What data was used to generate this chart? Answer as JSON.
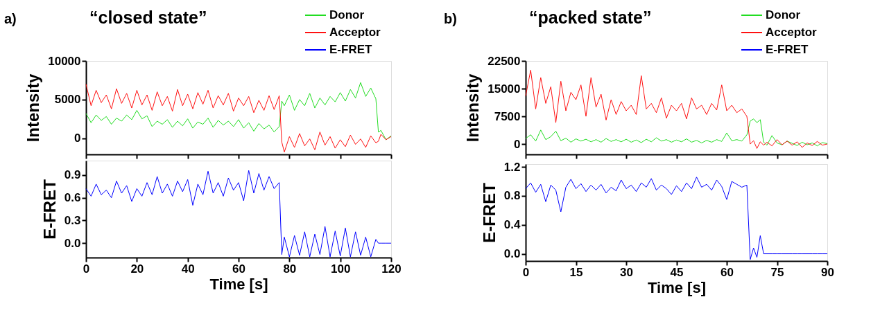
{
  "chart_data": [
    {
      "type": "line",
      "title": "“closed state”",
      "annotations": [
        "a)"
      ],
      "ylabel": "Intensity",
      "legend": "top right",
      "tick_labels": "y",
      "xlim": [
        0,
        120
      ],
      "xticks": [
        0,
        20,
        40,
        60,
        80,
        100,
        120
      ],
      "ylim": [
        -2100,
        10000
      ],
      "yticks": [
        0,
        5000,
        10000
      ],
      "series": [
        {
          "name": "Donor",
          "color": "#22dd22",
          "x": [
            0,
            2,
            4,
            6,
            8,
            10,
            12,
            14,
            16,
            18,
            20,
            22,
            24,
            26,
            28,
            30,
            32,
            34,
            36,
            38,
            40,
            42,
            44,
            46,
            48,
            50,
            52,
            54,
            56,
            58,
            60,
            62,
            64,
            66,
            68,
            70,
            72,
            74,
            76,
            77,
            78,
            80,
            82,
            84,
            86,
            88,
            90,
            92,
            94,
            96,
            98,
            100,
            102,
            104,
            106,
            108,
            110,
            112,
            114,
            115,
            116,
            118,
            120
          ],
          "values": [
            3200,
            2000,
            3000,
            2300,
            2800,
            1800,
            2600,
            2200,
            3000,
            2400,
            3600,
            2500,
            2900,
            1500,
            2200,
            1800,
            2400,
            1400,
            2200,
            1600,
            2500,
            1300,
            2100,
            1800,
            2600,
            1400,
            2300,
            1700,
            2200,
            1500,
            2400,
            1300,
            2000,
            900,
            1900,
            1200,
            1700,
            800,
            1500,
            4800,
            4200,
            5600,
            3600,
            5000,
            4200,
            5800,
            3900,
            5200,
            4300,
            5400,
            4700,
            5900,
            4800,
            6300,
            5200,
            7200,
            5400,
            6500,
            5100,
            800,
            1000,
            -200,
            300
          ]
        },
        {
          "name": "Acceptor",
          "color": "#ff1111",
          "x": [
            0,
            2,
            4,
            6,
            8,
            10,
            12,
            14,
            16,
            18,
            20,
            22,
            24,
            26,
            28,
            30,
            32,
            34,
            36,
            38,
            40,
            42,
            44,
            46,
            48,
            50,
            52,
            54,
            56,
            58,
            60,
            62,
            64,
            66,
            68,
            70,
            72,
            74,
            76,
            77,
            78,
            80,
            82,
            84,
            86,
            88,
            90,
            92,
            94,
            96,
            98,
            100,
            102,
            104,
            106,
            108,
            110,
            112,
            114,
            115,
            116,
            118,
            120
          ],
          "values": [
            7000,
            4200,
            6200,
            4600,
            5600,
            3800,
            6400,
            4500,
            5800,
            3900,
            6200,
            4300,
            5600,
            3600,
            6000,
            4200,
            5400,
            3500,
            6300,
            4200,
            5700,
            3800,
            5900,
            4400,
            6200,
            3900,
            5500,
            4300,
            5800,
            3500,
            5200,
            4200,
            5400,
            3300,
            4900,
            3600,
            5500,
            3700,
            5500,
            -500,
            -1800,
            200,
            -1200,
            600,
            -1000,
            -100,
            -1500,
            800,
            -900,
            200,
            -1300,
            -200,
            -1100,
            400,
            -800,
            -100,
            -1200,
            300,
            -600,
            -400,
            500,
            -200,
            200
          ]
        }
      ]
    },
    {
      "type": "line",
      "ylabel": "E-FRET",
      "xlabel": "Time [s]",
      "xlim": [
        0,
        120
      ],
      "xticks": [
        0,
        20,
        40,
        60,
        80,
        100,
        120
      ],
      "ylim": [
        -0.19,
        1.09
      ],
      "yticks": [
        {
          "value": 0,
          "label": "0.0"
        },
        0.3,
        0.6,
        0.9
      ],
      "series": [
        {
          "name": "E-FRET",
          "color": "#0000ff",
          "x": [
            0,
            2,
            4,
            6,
            8,
            10,
            12,
            14,
            16,
            18,
            20,
            22,
            24,
            26,
            28,
            30,
            32,
            34,
            36,
            38,
            40,
            42,
            44,
            46,
            48,
            50,
            52,
            54,
            56,
            58,
            60,
            62,
            64,
            66,
            68,
            70,
            72,
            74,
            76,
            77,
            78,
            80,
            82,
            84,
            86,
            88,
            90,
            92,
            94,
            96,
            98,
            100,
            102,
            104,
            106,
            108,
            110,
            112,
            114,
            115,
            116,
            118,
            120
          ],
          "values": [
            0.72,
            0.62,
            0.78,
            0.64,
            0.7,
            0.6,
            0.82,
            0.66,
            0.76,
            0.55,
            0.72,
            0.62,
            0.8,
            0.64,
            0.88,
            0.66,
            0.78,
            0.62,
            0.82,
            0.68,
            0.84,
            0.5,
            0.78,
            0.64,
            0.95,
            0.66,
            0.8,
            0.62,
            0.86,
            0.7,
            0.8,
            0.56,
            0.96,
            0.66,
            0.92,
            0.7,
            0.88,
            0.72,
            0.8,
            -0.15,
            0.08,
            -0.18,
            0.1,
            -0.16,
            0.15,
            -0.18,
            0.12,
            -0.15,
            0.22,
            -0.18,
            0.16,
            -0.17,
            0.2,
            -0.18,
            0.15,
            -0.16,
            0.08,
            -0.18,
            0.05,
            0,
            0,
            0,
            0
          ]
        }
      ]
    },
    {
      "type": "line",
      "title": "“packed state”",
      "annotations": [
        "b)"
      ],
      "ylabel": "Intensity",
      "legend": "top right",
      "tick_labels": "y",
      "xlim": [
        0,
        90
      ],
      "xticks": [
        0,
        15,
        30,
        45,
        60,
        75,
        90
      ],
      "ylim": [
        -2800,
        22500
      ],
      "yticks": [
        0,
        7500,
        15000,
        22500
      ],
      "series": [
        {
          "name": "Donor",
          "color": "#22dd22",
          "x": [
            0,
            1.5,
            3,
            4.5,
            6,
            7.5,
            9,
            10.5,
            12,
            13.5,
            15,
            16.5,
            18,
            19.5,
            21,
            22.5,
            24,
            25.5,
            27,
            28.5,
            30,
            31.5,
            33,
            34.5,
            36,
            37.5,
            39,
            40.5,
            42,
            43.5,
            45,
            46.5,
            48,
            49.5,
            51,
            52.5,
            54,
            55.5,
            57,
            58.5,
            60,
            61.5,
            63,
            64.5,
            66,
            67,
            68,
            69,
            70,
            71,
            72,
            73.5,
            75,
            76.5,
            78,
            79.5,
            81,
            82.5,
            84,
            85.5,
            87,
            88.5,
            90
          ],
          "values": [
            1500,
            2500,
            800,
            3800,
            1200,
            2000,
            3500,
            900,
            1600,
            500,
            1400,
            800,
            1300,
            600,
            1200,
            500,
            1500,
            700,
            1200,
            600,
            1300,
            500,
            1100,
            400,
            1300,
            600,
            1700,
            800,
            1200,
            500,
            1100,
            600,
            1400,
            500,
            1000,
            300,
            1000,
            500,
            1200,
            700,
            3000,
            900,
            1200,
            800,
            2500,
            6200,
            6800,
            5800,
            6600,
            500,
            -300,
            2300,
            300,
            -200,
            800,
            200,
            -400,
            500,
            -200,
            300,
            -500,
            400,
            100
          ]
        },
        {
          "name": "Acceptor",
          "color": "#ff1111",
          "x": [
            0,
            1.5,
            3,
            4.5,
            6,
            7.5,
            9,
            10.5,
            12,
            13.5,
            15,
            16.5,
            18,
            19.5,
            21,
            22.5,
            24,
            25.5,
            27,
            28.5,
            30,
            31.5,
            33,
            34.5,
            36,
            37.5,
            39,
            40.5,
            42,
            43.5,
            45,
            46.5,
            48,
            49.5,
            51,
            52.5,
            54,
            55.5,
            57,
            58.5,
            60,
            61.5,
            63,
            64.5,
            66,
            67,
            68,
            69,
            70,
            71,
            72,
            73.5,
            75,
            76.5,
            78,
            79.5,
            81,
            82.5,
            84,
            85.5,
            87,
            88.5,
            90
          ],
          "values": [
            13000,
            20000,
            9500,
            18000,
            11000,
            15500,
            5800,
            17000,
            9000,
            14000,
            12000,
            16000,
            7500,
            18000,
            10000,
            13500,
            6500,
            12000,
            8000,
            11500,
            9000,
            10500,
            8000,
            18500,
            9500,
            11000,
            8500,
            12500,
            7000,
            10500,
            9000,
            11000,
            6800,
            12500,
            9500,
            10500,
            8000,
            11000,
            9200,
            16000,
            9000,
            10500,
            8500,
            9500,
            7500,
            0,
            900,
            -1200,
            600,
            -300,
            500,
            -500,
            1200,
            -200,
            800,
            -300,
            600,
            -900,
            300,
            -400,
            700,
            -300,
            0
          ]
        }
      ]
    },
    {
      "type": "line",
      "ylabel": "E-FRET",
      "xlabel": "Time [s]",
      "xlim": [
        0,
        90
      ],
      "xticks": [
        0,
        15,
        30,
        45,
        60,
        75,
        90
      ],
      "ylim": [
        -0.1,
        1.24
      ],
      "yticks": [
        {
          "value": 0,
          "label": "0.0"
        },
        0.4,
        0.8,
        1.2
      ],
      "series": [
        {
          "name": "E-FRET",
          "color": "#0000ff",
          "x": [
            0,
            1.5,
            3,
            4.5,
            6,
            7.5,
            9,
            10.5,
            12,
            13.5,
            15,
            16.5,
            18,
            19.5,
            21,
            22.5,
            24,
            25.5,
            27,
            28.5,
            30,
            31.5,
            33,
            34.5,
            36,
            37.5,
            39,
            40.5,
            42,
            43.5,
            45,
            46.5,
            48,
            49.5,
            51,
            52.5,
            54,
            55.5,
            57,
            58.5,
            60,
            61.5,
            63,
            64.5,
            66,
            67,
            68,
            69,
            70,
            71,
            72,
            73.5,
            75,
            76.5,
            78,
            79.5,
            81,
            82.5,
            84,
            85.5,
            87,
            88.5,
            90
          ],
          "values": [
            0.9,
            0.98,
            0.85,
            0.96,
            0.72,
            0.95,
            0.88,
            0.58,
            0.92,
            1.03,
            0.9,
            0.97,
            0.86,
            0.95,
            0.88,
            0.96,
            0.84,
            0.92,
            0.87,
            1.02,
            0.9,
            0.95,
            0.86,
            0.98,
            0.92,
            1.04,
            0.88,
            0.95,
            0.9,
            0.82,
            0.94,
            0.86,
            0.98,
            0.9,
            1.06,
            0.92,
            0.96,
            0.88,
            1.02,
            0.93,
            0.75,
            1.0,
            0.96,
            0.92,
            0.95,
            -0.08,
            0.08,
            -0.05,
            0.25,
            0,
            0,
            0,
            0,
            0,
            0,
            0,
            0,
            0,
            0,
            0,
            0,
            0,
            0
          ]
        }
      ]
    }
  ]
}
